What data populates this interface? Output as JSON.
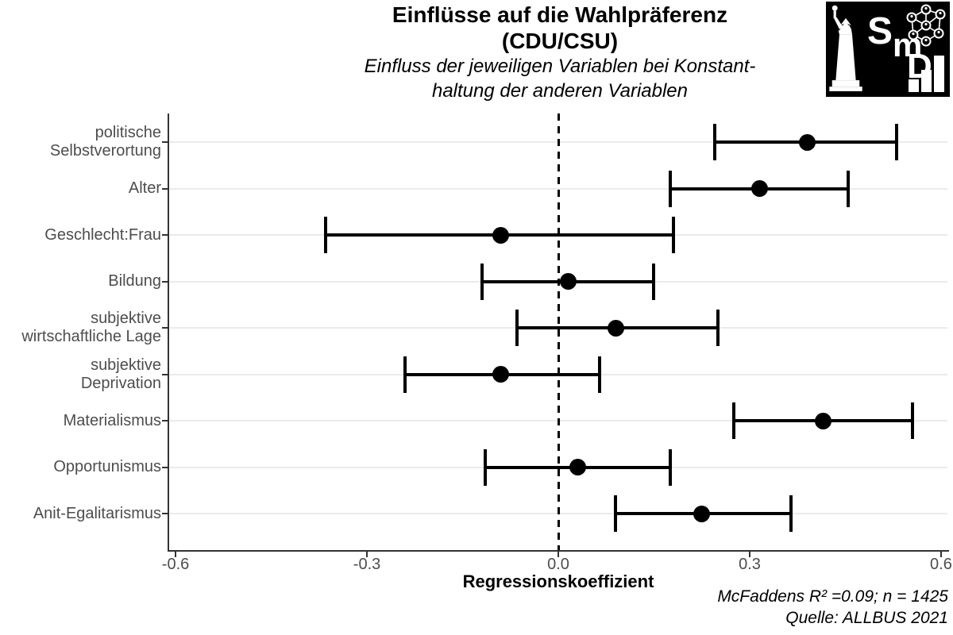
{
  "header": {
    "title_line1": "Einflüsse auf die Wahlpräferenz",
    "title_line2": "(CDU/CSU)",
    "subtitle_line1": "Einfluss der jeweiligen Variablen bei Konstant-",
    "subtitle_line2": "haltung der anderen Variablen"
  },
  "logo": {
    "letter_s": "S",
    "letter_m": "m",
    "letter_d": "D",
    "background": "#000000",
    "foreground": "#ffffff",
    "icons": [
      "statue-of-liberty",
      "social-network-graph",
      "ascending-bar-chart"
    ]
  },
  "chart_data": {
    "type": "scatter",
    "subtype": "coefficient-plot-with-error-bars",
    "title": "Einflüsse auf die Wahlpräferenz (CDU/CSU)",
    "subtitle": "Einfluss der jeweiligen Variablen bei Konstanthaltung der anderen Variablen",
    "xlabel": "Regressionskoeffizient",
    "ylabel": "",
    "xlim": [
      -0.61,
      0.61
    ],
    "x_ticks": [
      -0.6,
      -0.3,
      0.0,
      0.3,
      0.6
    ],
    "x_tick_labels": [
      "-0.6",
      "-0.3",
      "0.0",
      "0.3",
      "0.6"
    ],
    "grid": "horizontal-only",
    "zero_reference_line": {
      "x": 0.0,
      "style": "dashed",
      "color": "#000000"
    },
    "marker_color": "#000000",
    "rows": [
      {
        "label_lines": [
          "politische",
          "Selbstverortung"
        ],
        "estimate": 0.39,
        "ci_low": 0.245,
        "ci_high": 0.53
      },
      {
        "label_lines": [
          "Alter"
        ],
        "estimate": 0.315,
        "ci_low": 0.175,
        "ci_high": 0.455
      },
      {
        "label_lines": [
          "Geschlecht:Frau"
        ],
        "estimate": -0.09,
        "ci_low": -0.365,
        "ci_high": 0.18
      },
      {
        "label_lines": [
          "Bildung"
        ],
        "estimate": 0.015,
        "ci_low": -0.12,
        "ci_high": 0.15
      },
      {
        "label_lines": [
          "subjektive",
          "wirtschaftliche Lage"
        ],
        "estimate": 0.09,
        "ci_low": -0.065,
        "ci_high": 0.25
      },
      {
        "label_lines": [
          "subjektive",
          "Deprivation"
        ],
        "estimate": -0.09,
        "ci_low": -0.24,
        "ci_high": 0.065
      },
      {
        "label_lines": [
          "Materialismus"
        ],
        "estimate": 0.415,
        "ci_low": 0.275,
        "ci_high": 0.555
      },
      {
        "label_lines": [
          "Opportunismus"
        ],
        "estimate": 0.03,
        "ci_low": -0.115,
        "ci_high": 0.175
      },
      {
        "label_lines": [
          "Anit-Egalitarismus"
        ],
        "estimate": 0.225,
        "ci_low": 0.09,
        "ci_high": 0.365
      }
    ]
  },
  "caption": {
    "line1": "McFaddens R² =0.09; n = 1425",
    "line2": "Quelle: ALLBUS 2021"
  }
}
